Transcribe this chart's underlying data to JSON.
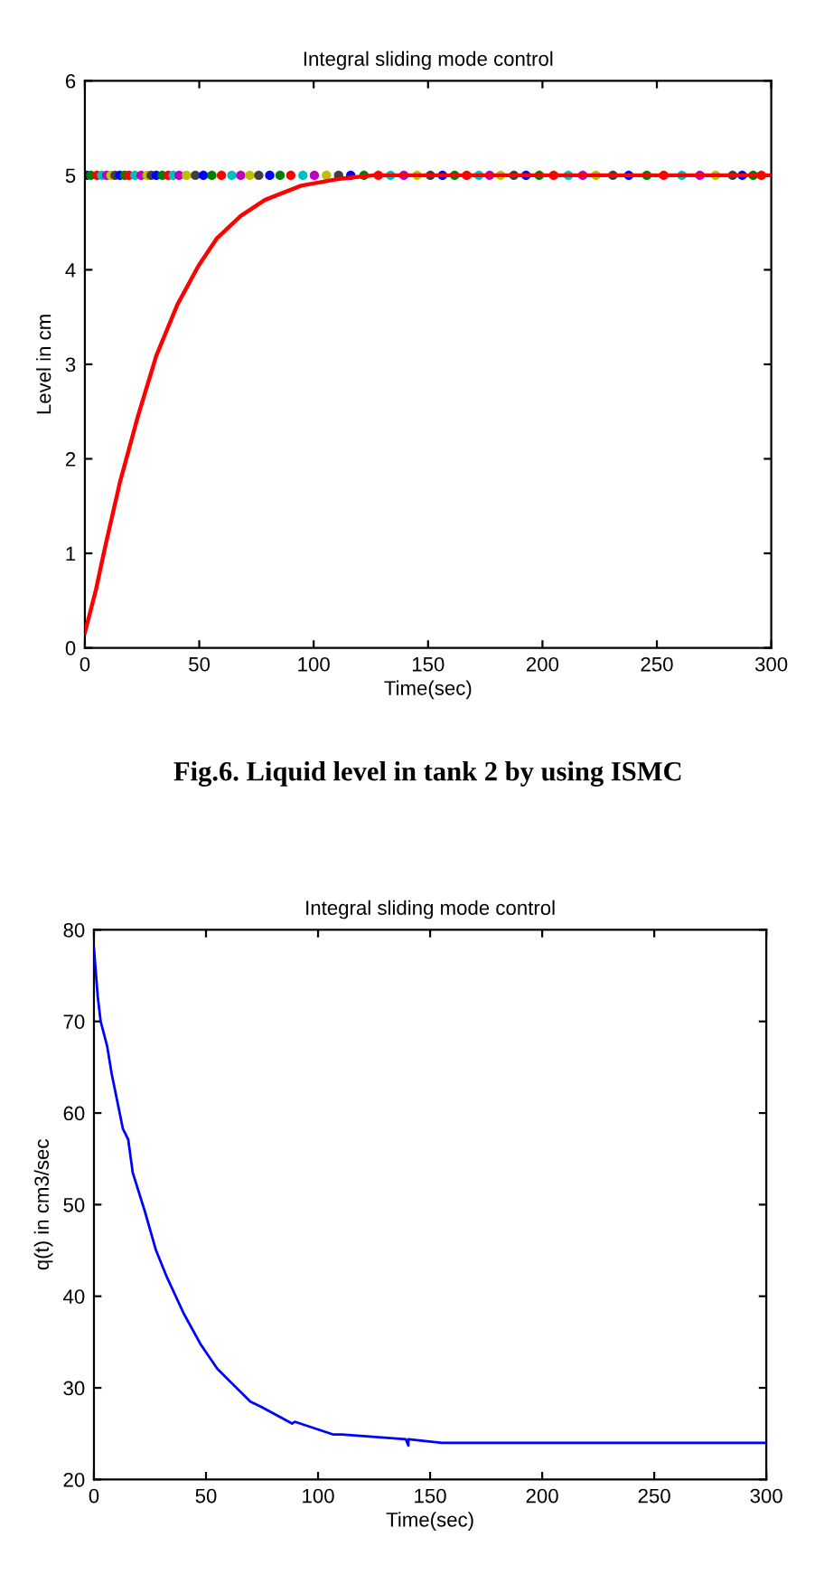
{
  "chart_data": [
    {
      "type": "line",
      "title": "Integral sliding mode control",
      "xlabel": "Time(sec)",
      "ylabel": "Level in cm",
      "xlim": [
        0,
        300
      ],
      "ylim": [
        0,
        6
      ],
      "xticks": [
        0,
        50,
        100,
        150,
        200,
        250,
        300
      ],
      "yticks": [
        0,
        1,
        2,
        3,
        4,
        5,
        6
      ],
      "grid": false,
      "legend": false,
      "annotations": [
        "Fig.6. Liquid level in tank 2 by using ISMC"
      ],
      "series": [
        {
          "type": "scatter",
          "marker": "circle",
          "x": [
            0.8,
            2.6,
            5.3,
            7.4,
            9.5,
            11.4,
            13.2,
            15.3,
            17.4,
            19.3,
            21.9,
            24.6,
            27.2,
            29,
            31.2,
            33.8,
            36.4,
            38.6,
            41.2,
            44.4,
            48.3,
            51.8,
            55.5,
            59.7,
            64.2,
            68.1,
            72.1,
            76,
            80.8,
            85.3,
            90,
            95.3,
            100.3,
            105.6,
            110.9,
            116.2,
            122,
            128.3,
            133.6,
            139.4,
            145.2,
            151,
            156.3,
            161.6,
            166.9,
            172.2,
            176.9,
            181.7,
            187.5,
            192.8,
            198.6,
            204.9,
            211.3,
            217.6,
            223.4,
            230.8,
            237.7,
            245.6,
            253,
            260.9,
            268.8,
            275.7,
            283.1,
            287.3,
            292.1,
            295.7
          ],
          "values": [
            5,
            5,
            5,
            5,
            5,
            5,
            5,
            5,
            5,
            5,
            5,
            5,
            5,
            5,
            5,
            5,
            5,
            5,
            5,
            5,
            5,
            5,
            5,
            5,
            5,
            5,
            5,
            5,
            5,
            5,
            5,
            5,
            5,
            5,
            5,
            5,
            5,
            5,
            5,
            5,
            5,
            5,
            5,
            5,
            5,
            5,
            5,
            5,
            5,
            5,
            5,
            5,
            5,
            5,
            5,
            5,
            5,
            5,
            5,
            5,
            5,
            5,
            5,
            5,
            5,
            5
          ],
          "colors": [
            "#0000ff",
            "#008000",
            "#ff0000",
            "#00bfbf",
            "#bf00bf",
            "#bfbf00",
            "#404040",
            "#0000ff",
            "#008000",
            "#ff0000",
            "#00bfbf",
            "#bf00bf",
            "#bfbf00",
            "#404040",
            "#0000ff",
            "#008000",
            "#ff0000",
            "#00bfbf",
            "#bf00bf",
            "#bfbf00",
            "#404040",
            "#0000ff",
            "#008000",
            "#ff0000",
            "#00bfbf",
            "#bf00bf",
            "#bfbf00",
            "#404040",
            "#0000ff",
            "#008000",
            "#ff0000",
            "#00bfbf",
            "#bf00bf",
            "#bfbf00",
            "#404040",
            "#0000ff",
            "#008000",
            "#ff0000",
            "#00bfbf",
            "#bf00bf",
            "#bfbf00",
            "#404040",
            "#0000ff",
            "#008000",
            "#ff0000",
            "#00bfbf",
            "#bf00bf",
            "#bfbf00",
            "#404040",
            "#0000ff",
            "#008000",
            "#ff0000",
            "#00bfbf",
            "#bf00bf",
            "#bfbf00",
            "#404040",
            "#0000ff",
            "#008000",
            "#ff0000",
            "#00bfbf",
            "#bf00bf",
            "#bfbf00",
            "#404040",
            "#0000ff",
            "#008000",
            "#ff0000"
          ]
        },
        {
          "color": "#ff0000",
          "marker": "none",
          "line_style": "solid",
          "x": [
            0,
            4.8,
            8.7,
            15.3,
            23.2,
            31.2,
            40.4,
            49.6,
            57.6,
            68.1,
            78.7,
            94.5,
            110.4,
            126.2,
            300
          ],
          "values": [
            0.16,
            0.61,
            1.05,
            1.75,
            2.45,
            3.09,
            3.63,
            4.04,
            4.33,
            4.57,
            4.74,
            4.89,
            4.96,
            5.0,
            5.0
          ]
        }
      ]
    },
    {
      "type": "line",
      "title": "Integral sliding mode control",
      "xlabel": "Time(sec)",
      "ylabel": "q(t) in cm3/sec",
      "xlim": [
        0,
        300
      ],
      "ylim": [
        20,
        80
      ],
      "xticks": [
        0,
        50,
        100,
        150,
        200,
        250,
        300
      ],
      "yticks": [
        20,
        30,
        40,
        50,
        60,
        70,
        80
      ],
      "grid": false,
      "legend": false,
      "series": [
        {
          "color": "#0000ff",
          "marker": "none",
          "line_style": "solid",
          "x": [
            0,
            1.7,
            3,
            5.9,
            7.9,
            12.9,
            15.3,
            17.3,
            22.8,
            27.7,
            32.7,
            40.1,
            47.5,
            55,
            59.9,
            69.8,
            74.8,
            88.4,
            89.6,
            106.9,
            110.6,
            139.1,
            140.3,
            140.3,
            155.2,
            171.3,
            300
          ],
          "values": [
            78,
            72.7,
            70,
            67.3,
            64.3,
            58.3,
            57.1,
            53.5,
            49.2,
            45,
            42,
            38.1,
            34.8,
            32.1,
            30.9,
            28.5,
            27.9,
            26.1,
            26.3,
            24.9,
            24.9,
            24.4,
            23.7,
            24.4,
            24,
            24,
            24
          ]
        }
      ]
    }
  ]
}
